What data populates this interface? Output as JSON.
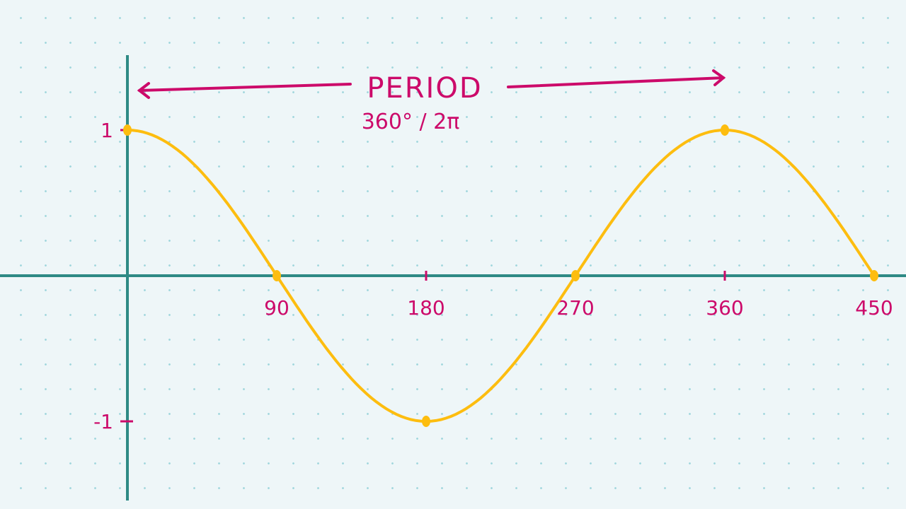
{
  "chart_data": {
    "type": "line",
    "title": "PERIOD",
    "subtitle": "360° / 2π",
    "function": "cos(x)",
    "x_ticks": [
      "90",
      "180",
      "270",
      "360",
      "450"
    ],
    "y_ticks": [
      "1",
      "-1"
    ],
    "xlim": [
      0,
      450
    ],
    "ylim": [
      -1,
      1
    ],
    "points": [
      {
        "x": 0,
        "y": 1
      },
      {
        "x": 90,
        "y": 0
      },
      {
        "x": 180,
        "y": -1
      },
      {
        "x": 270,
        "y": 0
      },
      {
        "x": 360,
        "y": 1
      },
      {
        "x": 450,
        "y": 0
      }
    ],
    "grid": "dotted",
    "colors": {
      "background": "#eef6f8",
      "axis": "#2e8a85",
      "annotation": "#cc0a6a",
      "curve": "#fdbd0f"
    }
  }
}
